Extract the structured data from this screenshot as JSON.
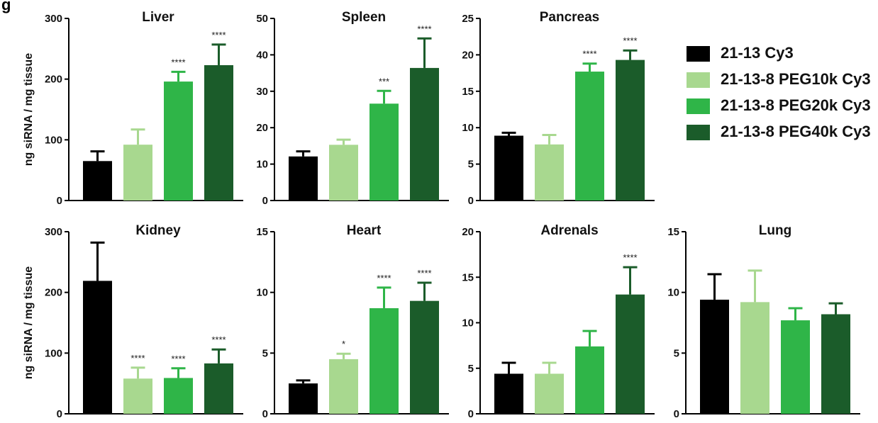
{
  "figure": {
    "panel_label": "g"
  },
  "colors": {
    "21-13 Cy3": "#000000",
    "21-13-8 PEG10k Cy3": "#a8d88f",
    "21-13-8 PEG20k Cy3": "#2fb548",
    "21-13-8 PEG40k Cy3": "#1b5c2a"
  },
  "legend": {
    "position": "right",
    "items": [
      {
        "label": "21-13 Cy3",
        "color": "#000000"
      },
      {
        "label": "21-13-8 PEG10k Cy3",
        "color": "#a8d88f"
      },
      {
        "label": "21-13-8 PEG20k Cy3",
        "color": "#2fb548"
      },
      {
        "label": "21-13-8 PEG40k Cy3",
        "color": "#1b5c2a"
      }
    ]
  },
  "chart_data": [
    {
      "type": "bar",
      "title": "Liver",
      "ylabel": "ng siRNA / mg tissue",
      "ylim": [
        0,
        300
      ],
      "yticks": [
        "0",
        "100",
        "200",
        "300"
      ],
      "categories": [
        "21-13 Cy3",
        "21-13-8 PEG10k Cy3",
        "21-13-8 PEG20k Cy3",
        "21-13-8 PEG40k Cy3"
      ],
      "values": [
        65,
        92,
        196,
        223
      ],
      "errors": [
        16,
        25,
        16,
        34
      ],
      "significance": [
        "",
        "",
        "****",
        "****"
      ]
    },
    {
      "type": "bar",
      "title": "Spleen",
      "ylabel": "",
      "ylim": [
        0,
        50
      ],
      "yticks": [
        "0",
        "10",
        "20",
        "30",
        "40",
        "50"
      ],
      "categories": [
        "21-13 Cy3",
        "21-13-8 PEG10k Cy3",
        "21-13-8 PEG20k Cy3",
        "21-13-8 PEG40k Cy3"
      ],
      "values": [
        12.1,
        15.3,
        26.6,
        36.4
      ],
      "errors": [
        1.4,
        1.4,
        3.5,
        8.1
      ],
      "significance": [
        "",
        "",
        "***",
        "****"
      ]
    },
    {
      "type": "bar",
      "title": "Pancreas",
      "ylabel": "",
      "ylim": [
        0,
        25
      ],
      "yticks": [
        "0",
        "5",
        "10",
        "15",
        "20",
        "25"
      ],
      "categories": [
        "21-13 Cy3",
        "21-13-8 PEG10k Cy3",
        "21-13-8 PEG20k Cy3",
        "21-13-8 PEG40k Cy3"
      ],
      "values": [
        8.9,
        7.7,
        17.7,
        19.3
      ],
      "errors": [
        0.4,
        1.3,
        1.1,
        1.3
      ],
      "significance": [
        "",
        "",
        "****",
        "****"
      ]
    },
    {
      "type": "bar",
      "title": "Kidney",
      "ylabel": "ng siRNA / mg tissue",
      "ylim": [
        0,
        300
      ],
      "yticks": [
        "0",
        "100",
        "200",
        "300"
      ],
      "categories": [
        "21-13 Cy3",
        "21-13-8 PEG10k Cy3",
        "21-13-8 PEG20k Cy3",
        "21-13-8 PEG40k Cy3"
      ],
      "values": [
        219,
        58,
        59,
        83
      ],
      "errors": [
        63,
        18,
        16,
        23
      ],
      "significance": [
        "",
        "****",
        "****",
        "****"
      ]
    },
    {
      "type": "bar",
      "title": "Heart",
      "ylabel": "",
      "ylim": [
        0,
        15
      ],
      "yticks": [
        "0",
        "5",
        "10",
        "15"
      ],
      "categories": [
        "21-13 Cy3",
        "21-13-8 PEG10k Cy3",
        "21-13-8 PEG20k Cy3",
        "21-13-8 PEG40k Cy3"
      ],
      "values": [
        2.5,
        4.5,
        8.7,
        9.3
      ],
      "errors": [
        0.25,
        0.45,
        1.7,
        1.5
      ],
      "significance": [
        "",
        "*",
        "****",
        "****"
      ]
    },
    {
      "type": "bar",
      "title": "Adrenals",
      "ylabel": "",
      "ylim": [
        0,
        20
      ],
      "yticks": [
        "0",
        "5",
        "10",
        "15",
        "20"
      ],
      "categories": [
        "21-13 Cy3",
        "21-13-8 PEG10k Cy3",
        "21-13-8 PEG20k Cy3",
        "21-13-8 PEG40k Cy3"
      ],
      "values": [
        4.4,
        4.4,
        7.4,
        13.1
      ],
      "errors": [
        1.2,
        1.2,
        1.7,
        3.0
      ],
      "significance": [
        "",
        "",
        "",
        "****"
      ]
    },
    {
      "type": "bar",
      "title": "Lung",
      "ylabel": "",
      "ylim": [
        0,
        15
      ],
      "yticks": [
        "0",
        "5",
        "10",
        "15"
      ],
      "categories": [
        "21-13 Cy3",
        "21-13-8 PEG10k Cy3",
        "21-13-8 PEG20k Cy3",
        "21-13-8 PEG40k Cy3"
      ],
      "values": [
        9.4,
        9.2,
        7.7,
        8.2
      ],
      "errors": [
        2.1,
        2.6,
        1.0,
        0.9
      ],
      "significance": [
        "",
        "",
        "",
        ""
      ]
    }
  ]
}
